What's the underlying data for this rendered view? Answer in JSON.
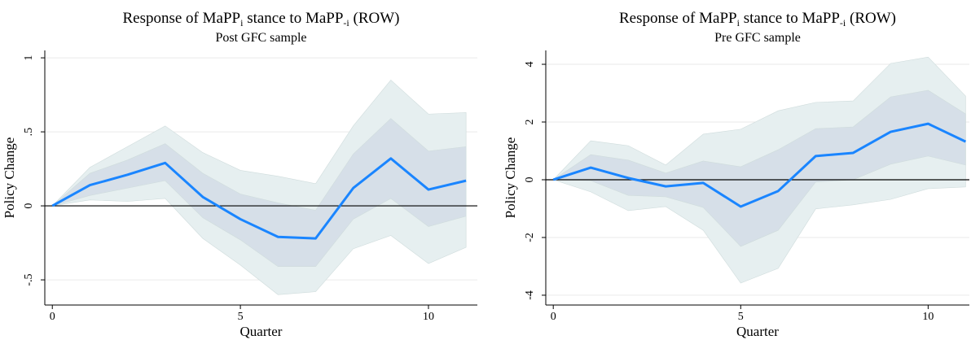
{
  "chart_data": [
    {
      "type": "line",
      "title": [
        "Response of MaPP",
        "i",
        " stance to MaPP",
        "-i",
        " (ROW)"
      ],
      "subtitle": "Post GFC sample",
      "x_label": "Quarter",
      "y_label": "Policy Change",
      "x": [
        0,
        1,
        2,
        3,
        4,
        5,
        6,
        7,
        8,
        9,
        10,
        11
      ],
      "values": [
        0,
        0.14,
        0.21,
        0.29,
        0.06,
        -0.09,
        -0.21,
        -0.22,
        0.12,
        0.32,
        0.11,
        0.17
      ],
      "color": "#1a85ff",
      "bands": [
        {
          "color": "#e6eff0",
          "upper": [
            0,
            0.26,
            0.4,
            0.54,
            0.36,
            0.24,
            0.2,
            0.15,
            0.54,
            0.85,
            0.62,
            0.63
          ],
          "lower": [
            0,
            0.04,
            0.03,
            0.05,
            -0.22,
            -0.4,
            -0.6,
            -0.58,
            -0.29,
            -0.2,
            -0.39,
            -0.28
          ]
        },
        {
          "color": "#d6dfe8",
          "upper": [
            0,
            0.22,
            0.31,
            0.42,
            0.22,
            0.08,
            0.02,
            -0.03,
            0.35,
            0.59,
            0.37,
            0.4
          ],
          "lower": [
            0,
            0.07,
            0.12,
            0.17,
            -0.08,
            -0.23,
            -0.41,
            -0.41,
            -0.09,
            0.05,
            -0.14,
            -0.07
          ]
        }
      ],
      "xlim": [
        -0.2,
        11.3
      ],
      "ylim": [
        -0.67,
        1.05
      ],
      "xticks": [
        0,
        5,
        10
      ],
      "yticks": [
        {
          "value": -0.5,
          "label": "-.5"
        },
        0,
        {
          "value": 0.5,
          "label": ".5"
        },
        1
      ],
      "grid": true
    },
    {
      "type": "line",
      "title": [
        "Response of MaPP",
        "i",
        " stance to MaPP",
        "-i",
        " (ROW)"
      ],
      "subtitle": "Pre GFC sample",
      "x_label": "Quarter",
      "y_label": "Policy Change",
      "x": [
        0,
        1,
        2,
        3,
        4,
        5,
        6,
        7,
        8,
        9,
        10,
        11
      ],
      "values": [
        0,
        0.42,
        0.06,
        -0.23,
        -0.11,
        -0.93,
        -0.39,
        0.82,
        0.93,
        1.66,
        1.94,
        1.32
      ],
      "color": "#1a85ff",
      "bands": [
        {
          "color": "#e6eff0",
          "upper": [
            0,
            1.35,
            1.18,
            0.51,
            1.58,
            1.75,
            2.39,
            2.68,
            2.73,
            4.03,
            4.25,
            2.9
          ],
          "lower": [
            0,
            -0.42,
            -1.07,
            -0.93,
            -1.75,
            -3.58,
            -3.07,
            -1.01,
            -0.87,
            -0.68,
            -0.31,
            -0.25
          ]
        },
        {
          "color": "#d6dfe8",
          "upper": [
            0,
            0.87,
            0.68,
            0.23,
            0.65,
            0.45,
            1.04,
            1.77,
            1.83,
            2.87,
            3.1,
            2.28
          ],
          "lower": [
            0,
            -0.03,
            -0.54,
            -0.59,
            -0.96,
            -2.31,
            -1.75,
            -0.08,
            0,
            0.54,
            0.82,
            0.51
          ]
        }
      ],
      "xlim": [
        -0.2,
        11.1
      ],
      "ylim": [
        -4.34,
        4.48
      ],
      "xticks": [
        0,
        5,
        10
      ],
      "yticks": [
        -4,
        -2,
        0,
        2,
        4
      ],
      "grid": true
    }
  ]
}
